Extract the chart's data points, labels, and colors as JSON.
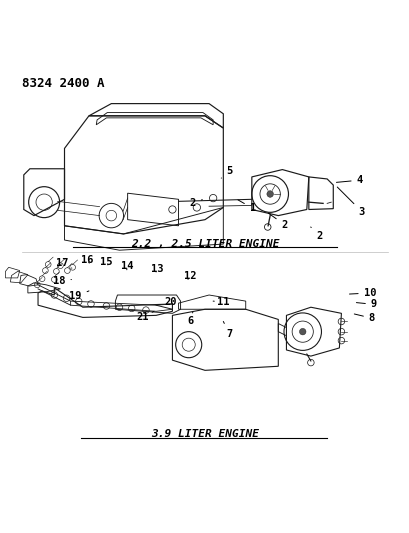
{
  "title": "",
  "part_number": "8324 2400 A",
  "label_top": "2.2 , 2.5 LITER ENGINE",
  "label_bottom": "3.9 LITER ENGINE",
  "bg_color": "#ffffff",
  "line_color": "#000000",
  "text_color": "#000000",
  "font_family": "monospace",
  "part_number_fontsize": 9,
  "engine_label_fontsize": 8,
  "callout_fontsize": 7.5
}
